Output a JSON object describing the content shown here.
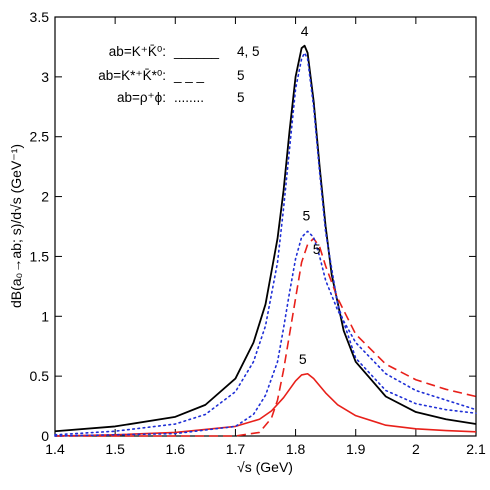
{
  "chart_data": {
    "type": "line",
    "xlabel": "√s   (GeV)",
    "ylabel": "dB(a₀→ab; s)/d√s   (GeV⁻¹)",
    "xlim": [
      1.4,
      2.1
    ],
    "ylim": [
      0,
      3.5
    ],
    "xticks": [
      1.4,
      1.5,
      1.6,
      1.7,
      1.8,
      1.9,
      2,
      2.1
    ],
    "xtick_labels": [
      "1.4",
      "1.5",
      "1.6",
      "1.7",
      "1.8",
      "1.9",
      "2",
      "2.1"
    ],
    "yticks": [
      0,
      0.5,
      1,
      1.5,
      2,
      2.5,
      3,
      3.5
    ],
    "ytick_labels": [
      "0",
      "0.5",
      "1",
      "1.5",
      "2",
      "2.5",
      "3",
      "3.5"
    ],
    "grid": false,
    "legend_position": "top-left",
    "legend": [
      {
        "label": "ab=K⁺K̄⁰:",
        "style_text": "______",
        "ref": "4, 5"
      },
      {
        "label": "ab=K*⁺K̄*⁰:",
        "style_text": "_ _ _",
        "ref": "5"
      },
      {
        "label": "ab=ρ⁺ϕ:",
        "style_text": "........",
        "ref": "5"
      }
    ],
    "series": [
      {
        "line_style": "solid",
        "color": "#000000",
        "x": [
          1.4,
          1.5,
          1.6,
          1.65,
          1.7,
          1.73,
          1.75,
          1.77,
          1.78,
          1.79,
          1.8,
          1.81,
          1.815,
          1.82,
          1.83,
          1.84,
          1.85,
          1.86,
          1.88,
          1.9,
          1.95,
          2.0,
          2.05,
          2.1
        ],
        "y": [
          0.04,
          0.08,
          0.16,
          0.26,
          0.48,
          0.78,
          1.1,
          1.65,
          2.05,
          2.55,
          3.0,
          3.24,
          3.26,
          3.2,
          2.8,
          2.25,
          1.75,
          1.35,
          0.88,
          0.62,
          0.33,
          0.2,
          0.14,
          0.1
        ]
      },
      {
        "line_style": "solid",
        "color": "#e8201a",
        "x": [
          1.4,
          1.5,
          1.6,
          1.7,
          1.74,
          1.76,
          1.78,
          1.79,
          1.8,
          1.81,
          1.82,
          1.83,
          1.85,
          1.87,
          1.9,
          1.95,
          2.0,
          2.05,
          2.1
        ],
        "y": [
          0.0,
          0.01,
          0.03,
          0.08,
          0.14,
          0.21,
          0.32,
          0.39,
          0.46,
          0.51,
          0.52,
          0.48,
          0.36,
          0.26,
          0.17,
          0.09,
          0.06,
          0.045,
          0.035
        ]
      },
      {
        "line_style": "dashed",
        "color": "#e8201a",
        "x": [
          1.4,
          1.6,
          1.7,
          1.74,
          1.76,
          1.77,
          1.78,
          1.79,
          1.8,
          1.81,
          1.82,
          1.83,
          1.84,
          1.85,
          1.87,
          1.9,
          1.95,
          2.0,
          2.05,
          2.1
        ],
        "y": [
          0.0,
          0.0,
          0.0,
          0.03,
          0.15,
          0.3,
          0.55,
          0.85,
          1.15,
          1.45,
          1.6,
          1.65,
          1.58,
          1.42,
          1.15,
          0.85,
          0.6,
          0.47,
          0.39,
          0.33
        ]
      },
      {
        "line_style": "dotted",
        "color": "#1f2fd6",
        "x": [
          1.4,
          1.5,
          1.6,
          1.65,
          1.7,
          1.73,
          1.75,
          1.77,
          1.78,
          1.79,
          1.8,
          1.81,
          1.815,
          1.82,
          1.83,
          1.84,
          1.85,
          1.87,
          1.9,
          1.95,
          2.0,
          2.05,
          2.1
        ],
        "y": [
          0.01,
          0.04,
          0.1,
          0.18,
          0.37,
          0.62,
          0.92,
          1.45,
          1.9,
          2.4,
          2.9,
          3.15,
          3.2,
          3.15,
          2.75,
          2.2,
          1.7,
          1.1,
          0.65,
          0.38,
          0.27,
          0.22,
          0.19
        ]
      },
      {
        "line_style": "dotted",
        "color": "#1f2fd6",
        "x": [
          1.4,
          1.6,
          1.7,
          1.73,
          1.75,
          1.77,
          1.78,
          1.79,
          1.8,
          1.81,
          1.82,
          1.83,
          1.84,
          1.85,
          1.87,
          1.9,
          1.95,
          2.0,
          2.05,
          2.1
        ],
        "y": [
          0.0,
          0.02,
          0.08,
          0.18,
          0.34,
          0.62,
          0.9,
          1.2,
          1.48,
          1.66,
          1.71,
          1.66,
          1.5,
          1.3,
          1.05,
          0.78,
          0.52,
          0.38,
          0.3,
          0.22
        ]
      }
    ],
    "annotations": [
      {
        "text": "4",
        "x": 1.815,
        "y": 3.34
      },
      {
        "text": "5",
        "x": 1.818,
        "y": 1.8
      },
      {
        "text": "5",
        "x": 1.835,
        "y": 1.52
      },
      {
        "text": "5",
        "x": 1.812,
        "y": 0.6
      }
    ]
  }
}
